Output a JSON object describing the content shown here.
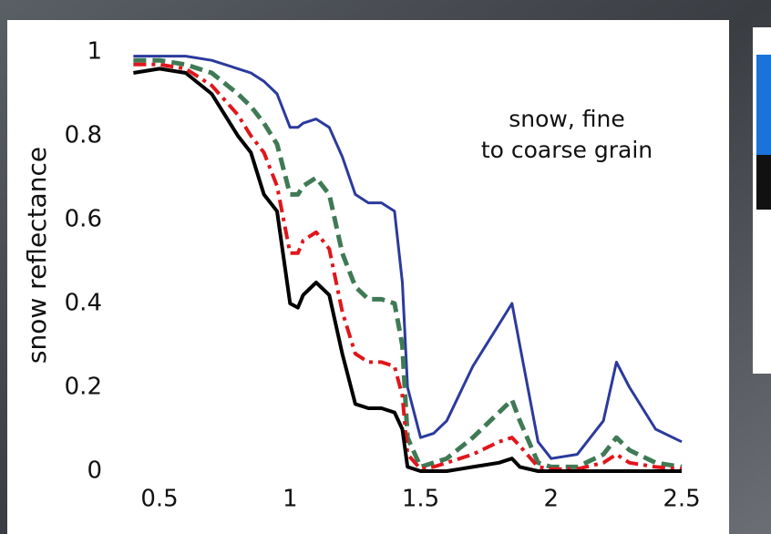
{
  "chart_data": {
    "type": "line",
    "ylabel": "snow reflectance",
    "annotation": [
      "snow, fine",
      "to coarse grain"
    ],
    "x": [
      0.4,
      0.5,
      0.6,
      0.7,
      0.8,
      0.85,
      0.9,
      0.95,
      1.0,
      1.03,
      1.05,
      1.1,
      1.15,
      1.2,
      1.25,
      1.3,
      1.35,
      1.4,
      1.43,
      1.45,
      1.5,
      1.55,
      1.6,
      1.7,
      1.8,
      1.85,
      1.88,
      1.95,
      2.0,
      2.1,
      2.2,
      2.25,
      2.3,
      2.4,
      2.5
    ],
    "series": [
      {
        "color": "#2b3a9c",
        "style": "solid",
        "width": 3,
        "values": [
          0.99,
          0.99,
          0.99,
          0.98,
          0.96,
          0.95,
          0.93,
          0.9,
          0.82,
          0.82,
          0.83,
          0.84,
          0.82,
          0.75,
          0.66,
          0.64,
          0.64,
          0.62,
          0.45,
          0.2,
          0.08,
          0.09,
          0.12,
          0.25,
          0.35,
          0.4,
          0.3,
          0.07,
          0.03,
          0.04,
          0.12,
          0.26,
          0.2,
          0.1,
          0.07
        ]
      },
      {
        "color": "#3f7a55",
        "style": "dashed",
        "width": 5,
        "values": [
          0.98,
          0.98,
          0.97,
          0.95,
          0.9,
          0.87,
          0.83,
          0.78,
          0.66,
          0.66,
          0.68,
          0.7,
          0.66,
          0.52,
          0.44,
          0.41,
          0.41,
          0.4,
          0.3,
          0.08,
          0.01,
          0.02,
          0.03,
          0.08,
          0.14,
          0.17,
          0.12,
          0.02,
          0.01,
          0.01,
          0.04,
          0.08,
          0.05,
          0.02,
          0.01
        ]
      },
      {
        "color": "#e0161b",
        "style": "dashdot",
        "width": 4,
        "values": [
          0.97,
          0.97,
          0.96,
          0.92,
          0.85,
          0.8,
          0.76,
          0.68,
          0.52,
          0.52,
          0.55,
          0.57,
          0.53,
          0.38,
          0.28,
          0.26,
          0.26,
          0.25,
          0.18,
          0.04,
          0.005,
          0.01,
          0.02,
          0.04,
          0.07,
          0.08,
          0.06,
          0.01,
          0.005,
          0.005,
          0.02,
          0.04,
          0.02,
          0.01,
          0.005
        ]
      },
      {
        "color": "#000000",
        "style": "solid",
        "width": 4,
        "values": [
          0.95,
          0.96,
          0.95,
          0.9,
          0.8,
          0.76,
          0.66,
          0.62,
          0.4,
          0.39,
          0.42,
          0.45,
          0.42,
          0.28,
          0.16,
          0.15,
          0.15,
          0.14,
          0.1,
          0.01,
          0,
          0,
          0,
          0.01,
          0.02,
          0.03,
          0.01,
          0,
          0,
          0,
          0,
          0,
          0,
          0,
          0
        ]
      }
    ],
    "xlim": [
      0.4,
      2.5
    ],
    "ylim": [
      0,
      1
    ],
    "xticks": [
      0.5,
      1,
      1.5,
      2,
      2.5
    ],
    "yticks": [
      0,
      0.2,
      0.4,
      0.6,
      0.8,
      1
    ],
    "grid": false
  }
}
